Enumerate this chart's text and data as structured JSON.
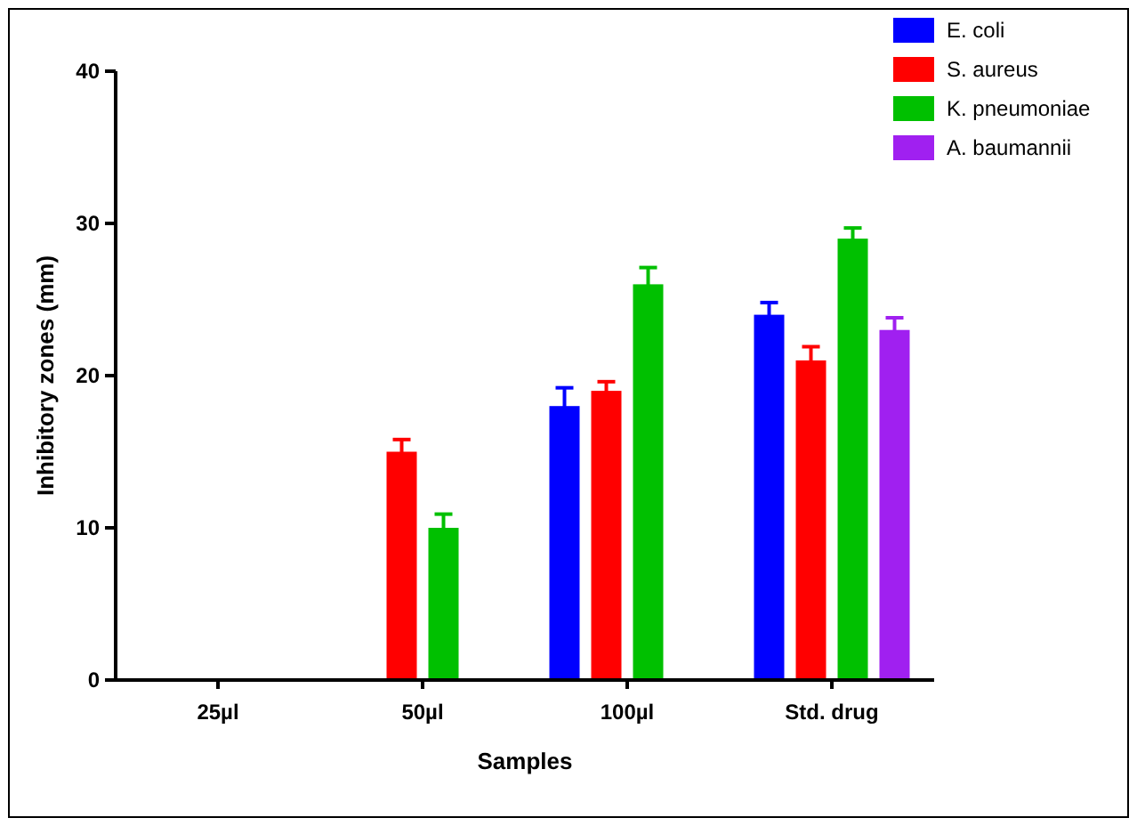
{
  "chart_data": {
    "type": "bar",
    "xlabel": "Samples",
    "ylabel": "Inhibitory zones (mm)",
    "categories": [
      "25µl",
      "50µl",
      "100µl",
      "Std. drug"
    ],
    "ylim": [
      0,
      40
    ],
    "yticks": [
      0,
      10,
      20,
      30,
      40
    ],
    "grid": false,
    "legend": "top right",
    "series": [
      {
        "name": "E. coli",
        "color": "#0000ff",
        "values": [
          null,
          null,
          18,
          24
        ],
        "errors": [
          null,
          null,
          1.2,
          0.8
        ]
      },
      {
        "name": "S. aureus",
        "color": "#ff0000",
        "values": [
          null,
          15,
          19,
          21
        ],
        "errors": [
          null,
          0.8,
          0.6,
          0.9
        ]
      },
      {
        "name": "K. pneumoniae",
        "color": "#00c000",
        "values": [
          null,
          10,
          26,
          29
        ],
        "errors": [
          null,
          0.9,
          1.1,
          0.7
        ]
      },
      {
        "name": "A. baumannii",
        "color": "#a020f0",
        "values": [
          null,
          null,
          null,
          23
        ],
        "errors": [
          null,
          null,
          null,
          0.8
        ]
      }
    ]
  }
}
